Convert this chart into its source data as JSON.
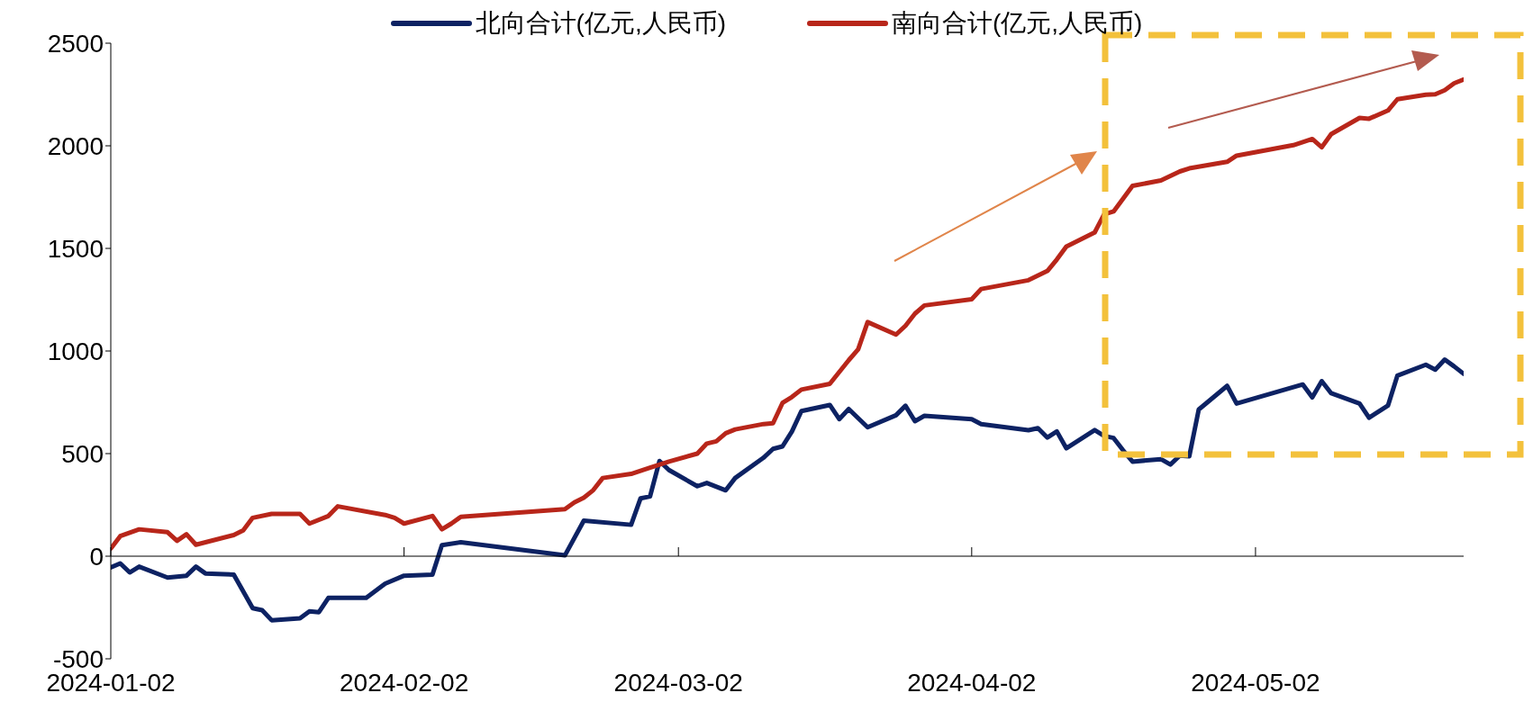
{
  "chart_data": {
    "type": "line",
    "legend": "top",
    "ylim": [
      -500,
      2500
    ],
    "yticks": [
      -500,
      0,
      500,
      1000,
      1500,
      2000,
      2500
    ],
    "xlim": [
      "2024-01-02",
      "2024-05-24"
    ],
    "xticks": [
      "2024-01-02",
      "2024-02-02",
      "2024-03-02",
      "2024-04-02",
      "2024-05-02"
    ],
    "series": [
      {
        "name": "北向合计(亿元,人民币)",
        "color": "#0d2263",
        "x": [
          "2024-01-02",
          "2024-01-03",
          "2024-01-04",
          "2024-01-05",
          "2024-01-08",
          "2024-01-10",
          "2024-01-11",
          "2024-01-12",
          "2024-01-15",
          "2024-01-17",
          "2024-01-18",
          "2024-01-19",
          "2024-01-22",
          "2024-01-23",
          "2024-01-24",
          "2024-01-25",
          "2024-01-29",
          "2024-01-31",
          "2024-02-02",
          "2024-02-05",
          "2024-02-06",
          "2024-02-08",
          "2024-02-19",
          "2024-02-21",
          "2024-02-26",
          "2024-02-27",
          "2024-02-28",
          "2024-02-29",
          "2024-03-01",
          "2024-03-04",
          "2024-03-05",
          "2024-03-07",
          "2024-03-08",
          "2024-03-11",
          "2024-03-12",
          "2024-03-13",
          "2024-03-14",
          "2024-03-15",
          "2024-03-18",
          "2024-03-19",
          "2024-03-20",
          "2024-03-22",
          "2024-03-25",
          "2024-03-26",
          "2024-03-27",
          "2024-03-28",
          "2024-04-02",
          "2024-04-03",
          "2024-04-08",
          "2024-04-09",
          "2024-04-10",
          "2024-04-11",
          "2024-04-12",
          "2024-04-15",
          "2024-04-16",
          "2024-04-17",
          "2024-04-18",
          "2024-04-19",
          "2024-04-22",
          "2024-04-23",
          "2024-04-24",
          "2024-04-25",
          "2024-04-26",
          "2024-04-29",
          "2024-04-30",
          "2024-05-07",
          "2024-05-08",
          "2024-05-09",
          "2024-05-10",
          "2024-05-13",
          "2024-05-14",
          "2024-05-16",
          "2024-05-17",
          "2024-05-20",
          "2024-05-21",
          "2024-05-22",
          "2024-05-23",
          "2024-05-24"
        ],
        "values": [
          -55,
          -35,
          -79,
          -51,
          -104,
          -95,
          -51,
          -84,
          -90,
          -253,
          -263,
          -312,
          -303,
          -269,
          -273,
          -203,
          -203,
          -134,
          -95,
          -90,
          54,
          68,
          4,
          173,
          153,
          282,
          291,
          464,
          420,
          341,
          357,
          321,
          381,
          480,
          523,
          535,
          608,
          707,
          737,
          668,
          717,
          628,
          687,
          733,
          658,
          684,
          668,
          644,
          614,
          624,
          578,
          608,
          526,
          615,
          586,
          576,
          516,
          461,
          473,
          447,
          490,
          487,
          715,
          830,
          744,
          837,
          774,
          853,
          794,
          744,
          675,
          734,
          880,
          933,
          909,
          958,
          925,
          889
        ]
      },
      {
        "name": "南向合计(亿元,人民币)",
        "color": "#b8261a",
        "x": [
          "2024-01-02",
          "2024-01-03",
          "2024-01-05",
          "2024-01-08",
          "2024-01-09",
          "2024-01-10",
          "2024-01-11",
          "2024-01-15",
          "2024-01-16",
          "2024-01-17",
          "2024-01-19",
          "2024-01-22",
          "2024-01-23",
          "2024-01-25",
          "2024-01-26",
          "2024-01-31",
          "2024-02-01",
          "2024-02-02",
          "2024-02-05",
          "2024-02-06",
          "2024-02-07",
          "2024-02-08",
          "2024-02-19",
          "2024-02-20",
          "2024-02-21",
          "2024-02-22",
          "2024-02-23",
          "2024-02-26",
          "2024-02-28",
          "2024-03-01",
          "2024-03-04",
          "2024-03-05",
          "2024-03-06",
          "2024-03-07",
          "2024-03-08",
          "2024-03-11",
          "2024-03-12",
          "2024-03-13",
          "2024-03-14",
          "2024-03-15",
          "2024-03-18",
          "2024-03-20",
          "2024-03-21",
          "2024-03-22",
          "2024-03-25",
          "2024-03-26",
          "2024-03-27",
          "2024-03-28",
          "2024-04-02",
          "2024-04-03",
          "2024-04-08",
          "2024-04-10",
          "2024-04-11",
          "2024-04-12",
          "2024-04-15",
          "2024-04-16",
          "2024-04-17",
          "2024-04-19",
          "2024-04-22",
          "2024-04-24",
          "2024-04-25",
          "2024-04-29",
          "2024-04-30",
          "2024-05-06",
          "2024-05-08",
          "2024-05-09",
          "2024-05-10",
          "2024-05-13",
          "2024-05-14",
          "2024-05-16",
          "2024-05-17",
          "2024-05-20",
          "2024-05-21",
          "2024-05-22",
          "2024-05-23",
          "2024-05-24"
        ],
        "values": [
          37,
          98,
          131,
          117,
          75,
          107,
          56,
          103,
          126,
          187,
          206,
          206,
          159,
          196,
          243,
          201,
          187,
          159,
          196,
          131,
          159,
          192,
          229,
          262,
          285,
          322,
          381,
          401,
          431,
          461,
          500,
          549,
          560,
          599,
          618,
          644,
          648,
          747,
          776,
          812,
          840,
          955,
          1008,
          1141,
          1080,
          1123,
          1182,
          1222,
          1252,
          1302,
          1345,
          1390,
          1446,
          1509,
          1578,
          1666,
          1680,
          1805,
          1831,
          1875,
          1890,
          1922,
          1952,
          2003,
          2033,
          1993,
          2057,
          2136,
          2132,
          2172,
          2227,
          2249,
          2251,
          2271,
          2305,
          2323
        ]
      }
    ]
  }
}
